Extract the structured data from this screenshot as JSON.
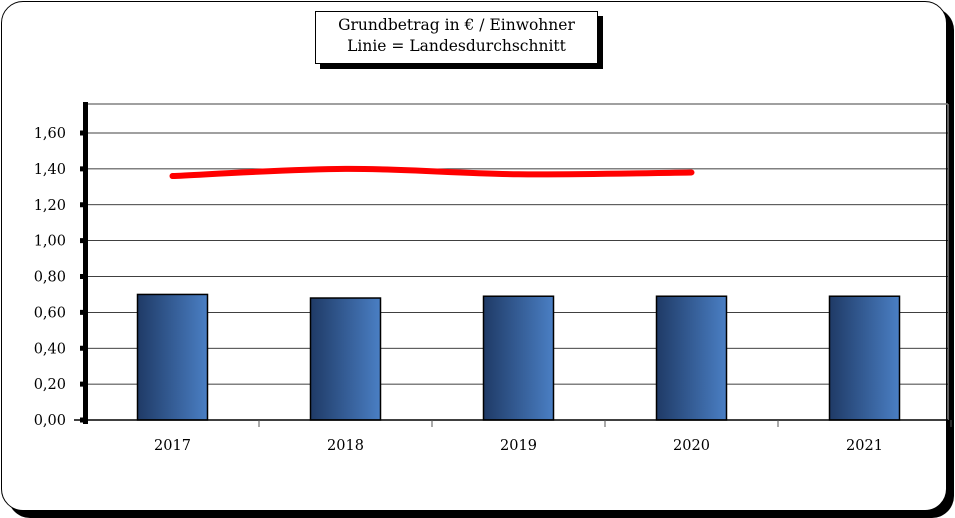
{
  "chart_data": {
    "type": "bar",
    "title": "Grundbetrag in € / Einwohner",
    "subtitle": "Linie = Landesdurchschnitt",
    "categories": [
      "2017",
      "2018",
      "2019",
      "2020",
      "2021"
    ],
    "series": [
      {
        "type": "bar",
        "values": [
          0.7,
          0.68,
          0.69,
          0.69,
          0.69
        ]
      },
      {
        "type": "line",
        "values": [
          1.36,
          1.4,
          1.37,
          1.38,
          null
        ]
      }
    ],
    "ylim": [
      0,
      1.6
    ],
    "yticks": [
      "0,00",
      "0,20",
      "0,40",
      "0,60",
      "0,80",
      "1,00",
      "1,20",
      "1,40",
      "1,60"
    ],
    "xlabel": "",
    "ylabel": "",
    "grid": true,
    "colors": {
      "bar_dark": "#1f3a66",
      "bar_light": "#4a7fc4",
      "line": "#ff0000"
    }
  }
}
